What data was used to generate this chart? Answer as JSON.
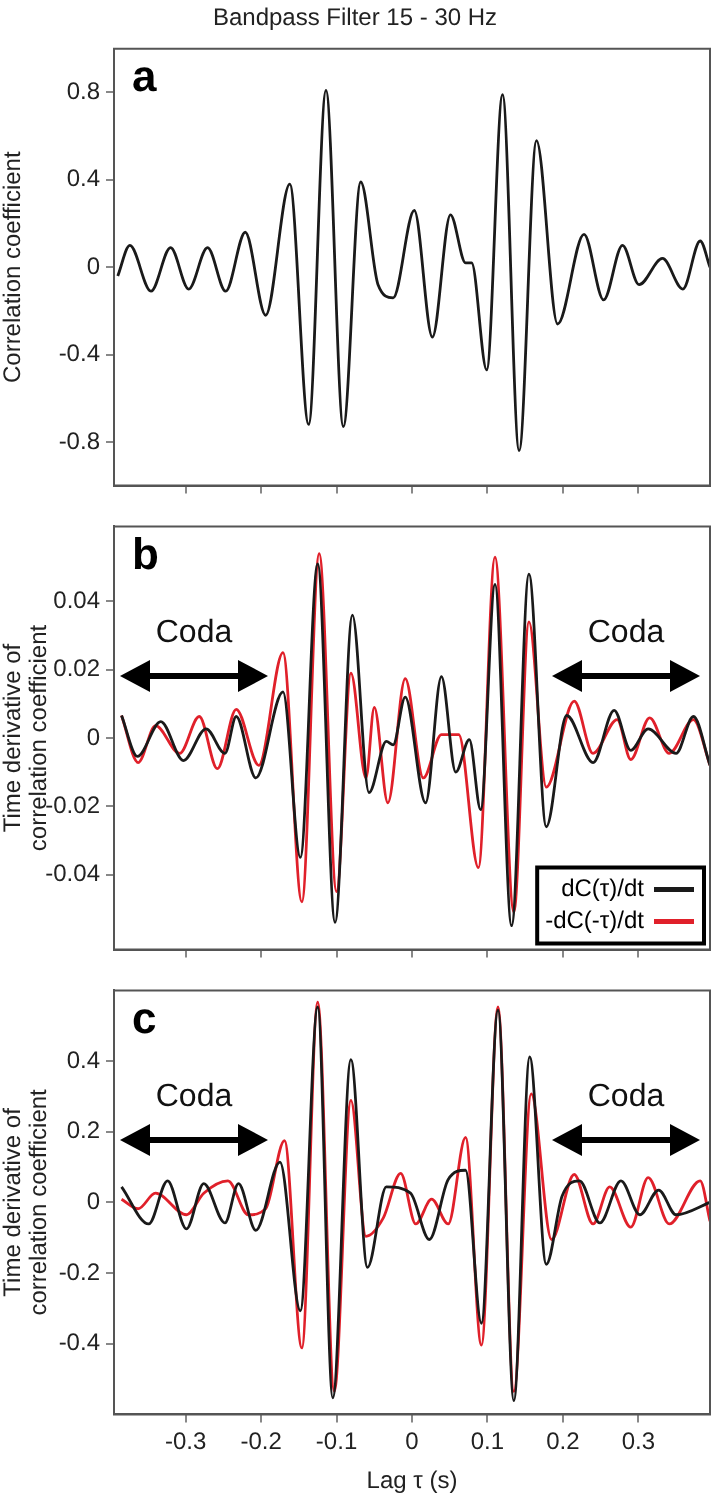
{
  "chart_data": [
    {
      "type": "line",
      "title": "Bandpass Filter 15 - 30 Hz",
      "ylabel": "Correlation coefficient",
      "xlim": [
        -0.395,
        0.395
      ],
      "xticks": [
        -0.3,
        -0.2,
        -0.1,
        0,
        0.1,
        0.2,
        0.3
      ],
      "ylim": [
        -1,
        1
      ],
      "yticks": [
        -0.8,
        -0.4,
        0,
        0.4,
        0.8
      ],
      "tick_labels": "y",
      "annotations": [
        "a"
      ],
      "series": [
        {
          "color": "#1a1a1a",
          "x": [
            -0.39,
            -0.374,
            -0.346,
            -0.32,
            -0.296,
            -0.271,
            -0.247,
            -0.221,
            -0.194,
            -0.162,
            -0.137,
            -0.114,
            -0.091,
            -0.068,
            -0.045,
            -0.025,
            0.003,
            0.027,
            0.051,
            0.071,
            0.079,
            0.099,
            0.12,
            0.142,
            0.165,
            0.193,
            0.228,
            0.254,
            0.279,
            0.301,
            0.332,
            0.359,
            0.382,
            0.395
          ],
          "values": [
            -0.04,
            0.1,
            -0.11,
            0.09,
            -0.1,
            0.09,
            -0.11,
            0.16,
            -0.22,
            0.38,
            -0.72,
            0.81,
            -0.73,
            0.39,
            -0.08,
            -0.14,
            0.26,
            -0.32,
            0.24,
            0.02,
            0.02,
            -0.47,
            0.79,
            -0.84,
            0.58,
            -0.26,
            0.15,
            -0.15,
            0.1,
            -0.08,
            0.04,
            -0.1,
            0.12,
            0
          ]
        }
      ]
    },
    {
      "type": "line",
      "ylabel": "Time derivative of\ncorrelation coefficient",
      "xlim": [
        -0.395,
        0.395
      ],
      "xticks": [
        -0.3,
        -0.2,
        -0.1,
        0,
        0.1,
        0.2,
        0.3
      ],
      "ylim": [
        -0.062,
        0.062
      ],
      "yticks": [
        -0.04,
        -0.02,
        0,
        0.02,
        0.04
      ],
      "tick_labels": "y",
      "legend": "bottom right",
      "annotations": [
        "b",
        "Coda",
        "Coda"
      ],
      "series": [
        {
          "name": "dC(τ)/dt",
          "color": "#1a1a1a",
          "x": [
            -0.385,
            -0.364,
            -0.333,
            -0.303,
            -0.273,
            -0.248,
            -0.233,
            -0.207,
            -0.171,
            -0.148,
            -0.125,
            -0.102,
            -0.079,
            -0.057,
            -0.034,
            -0.025,
            -0.009,
            0.018,
            0.039,
            0.058,
            0.076,
            0.091,
            0.11,
            0.132,
            0.155,
            0.178,
            0.205,
            0.24,
            0.268,
            0.29,
            0.313,
            0.35,
            0.373,
            0.395
          ],
          "values": [
            0.0066,
            -0.0054,
            0.0048,
            -0.0066,
            0.0027,
            -0.0045,
            0.0063,
            -0.0117,
            0.0135,
            -0.035,
            0.051,
            -0.054,
            0.036,
            -0.016,
            -0.001,
            -0.002,
            0.012,
            -0.019,
            0.018,
            -0.01,
            -0.0005,
            -0.021,
            0.045,
            -0.055,
            0.048,
            -0.026,
            0.0066,
            -0.0072,
            0.0081,
            -0.0036,
            0.0027,
            -0.0045,
            0.0063,
            -0.008
          ]
        },
        {
          "name": "-dC(-τ)/dt",
          "color": "#e0202a",
          "x": [
            -0.385,
            -0.363,
            -0.34,
            -0.308,
            -0.282,
            -0.258,
            -0.233,
            -0.203,
            -0.171,
            -0.146,
            -0.123,
            -0.1,
            -0.081,
            -0.061,
            -0.05,
            -0.032,
            -0.009,
            0.015,
            0.039,
            0.062,
            0.088,
            0.11,
            0.135,
            0.155,
            0.178,
            0.215,
            0.24,
            0.272,
            0.29,
            0.315,
            0.341,
            0.373,
            0.395
          ],
          "values": [
            0.0066,
            -0.0072,
            0.0036,
            -0.0045,
            0.0063,
            -0.009,
            0.0084,
            -0.008,
            0.025,
            -0.048,
            0.054,
            -0.045,
            0.019,
            -0.0117,
            0.009,
            -0.019,
            0.0174,
            -0.0117,
            0.001,
            0.001,
            -0.038,
            0.053,
            -0.051,
            0.034,
            -0.0144,
            0.0108,
            -0.0045,
            0.0054,
            -0.0063,
            0.0059,
            -0.0045,
            0.0054,
            -0.008
          ]
        }
      ]
    },
    {
      "type": "line",
      "ylabel": "Time derivative of\ncorrelation coefficient",
      "xlabel": "Lag τ (s)",
      "xlim": [
        -0.395,
        0.395
      ],
      "xticks": [
        -0.3,
        -0.2,
        -0.1,
        0,
        0.1,
        0.2,
        0.3
      ],
      "ylim": [
        -0.6,
        0.6
      ],
      "yticks": [
        -0.4,
        -0.2,
        0,
        0.2,
        0.4
      ],
      "annotations": [
        "c",
        "Coda",
        "Coda"
      ],
      "series": [
        {
          "color": "#1a1a1a",
          "x": [
            -0.385,
            -0.349,
            -0.324,
            -0.299,
            -0.276,
            -0.248,
            -0.23,
            -0.207,
            -0.175,
            -0.148,
            -0.125,
            -0.105,
            -0.081,
            -0.059,
            -0.034,
            -0.002,
            0.023,
            0.048,
            0.071,
            0.092,
            0.114,
            0.135,
            0.156,
            0.178,
            0.199,
            0.222,
            0.249,
            0.277,
            0.302,
            0.327,
            0.35,
            0.395
          ],
          "values": [
            0.044,
            -0.061,
            0.061,
            -0.075,
            0.053,
            -0.058,
            0.053,
            -0.079,
            0.114,
            -0.307,
            0.553,
            -0.553,
            0.404,
            -0.184,
            0.044,
            0.026,
            -0.105,
            0.065,
            0.091,
            -0.342,
            0.544,
            -0.561,
            0.412,
            -0.175,
            0.018,
            0.061,
            -0.058,
            0.061,
            -0.035,
            0.035,
            -0.035,
            0
          ]
        },
        {
          "color": "#e0202a",
          "x": [
            -0.385,
            -0.363,
            -0.34,
            -0.299,
            -0.276,
            -0.244,
            -0.217,
            -0.194,
            -0.169,
            -0.146,
            -0.125,
            -0.103,
            -0.081,
            -0.061,
            -0.038,
            -0.015,
            0.005,
            0.026,
            0.048,
            0.071,
            0.092,
            0.114,
            0.135,
            0.158,
            0.185,
            0.215,
            0.24,
            0.262,
            0.29,
            0.313,
            0.341,
            0.382,
            0.395
          ],
          "values": [
            0.009,
            -0.018,
            0.026,
            -0.035,
            0.026,
            0.061,
            -0.035,
            -0.018,
            0.175,
            -0.412,
            0.567,
            -0.535,
            0.289,
            -0.096,
            -0.044,
            0.082,
            -0.061,
            0.009,
            -0.061,
            0.184,
            -0.404,
            0.553,
            -0.535,
            0.307,
            -0.105,
            0.079,
            -0.061,
            0.044,
            -0.07,
            0.07,
            -0.061,
            0.061,
            -0.053
          ]
        }
      ]
    }
  ]
}
